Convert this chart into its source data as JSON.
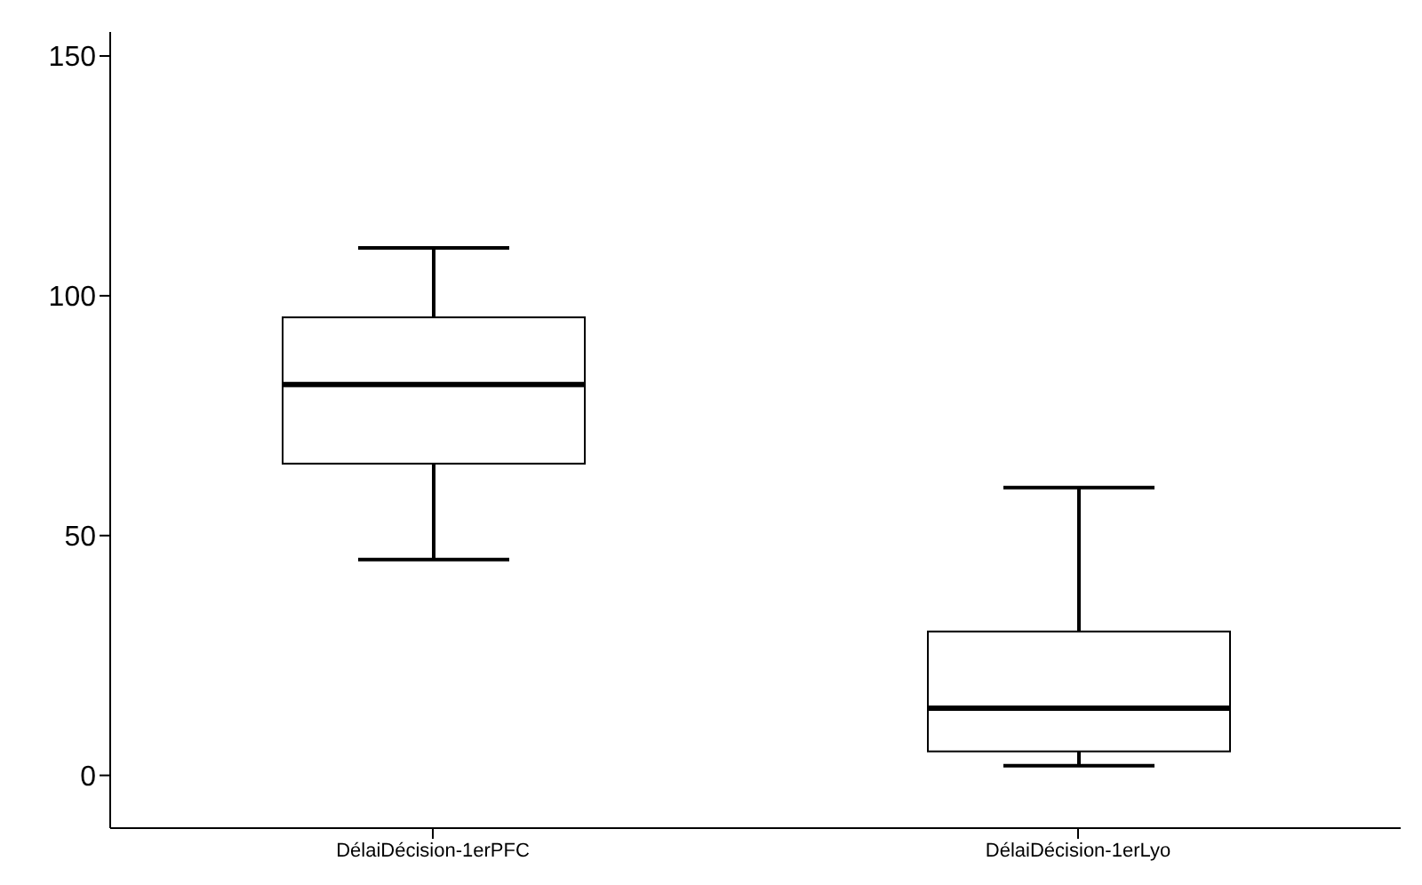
{
  "chart_data": {
    "type": "box",
    "categories": [
      "DélaiDécision-1erPFC",
      "DélaiDécision-1erLyo"
    ],
    "boxes": [
      {
        "low": 45,
        "q1": 65,
        "median": 81.5,
        "q3": 95.5,
        "high": 110
      },
      {
        "low": 2,
        "q1": 5,
        "median": 14,
        "q3": 30,
        "high": 60
      }
    ],
    "ylim": [
      -11,
      155
    ],
    "yticks": [
      0,
      50,
      100,
      150
    ],
    "grid": false,
    "legend": false
  }
}
